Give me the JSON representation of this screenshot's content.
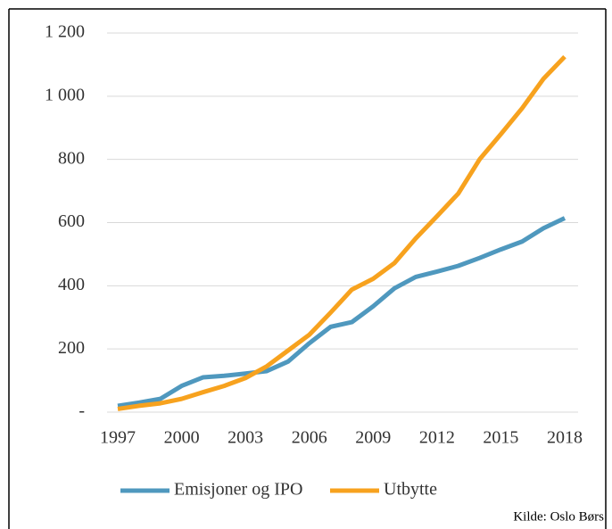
{
  "chart_data": {
    "type": "line",
    "x": [
      1997,
      1998,
      1999,
      2000,
      2001,
      2002,
      2003,
      2004,
      2005,
      2006,
      2007,
      2008,
      2009,
      2010,
      2011,
      2012,
      2013,
      2014,
      2015,
      2016,
      2017,
      2018
    ],
    "series": [
      {
        "name": "Emisjoner og IPO",
        "color": "#4f98be",
        "values": [
          20,
          30,
          42,
          83,
          110,
          115,
          122,
          130,
          160,
          218,
          270,
          285,
          335,
          392,
          428,
          445,
          463,
          488,
          515,
          540,
          582,
          614
        ]
      },
      {
        "name": "Utbytte",
        "color": "#f7a21e",
        "values": [
          10,
          20,
          28,
          42,
          63,
          83,
          108,
          145,
          195,
          245,
          315,
          388,
          422,
          472,
          550,
          620,
          692,
          800,
          880,
          962,
          1055,
          1125
        ]
      }
    ],
    "xlim": [
      1997,
      2018
    ],
    "xticks": [
      1997,
      2000,
      2003,
      2006,
      2009,
      2012,
      2015,
      2018
    ],
    "ylim": [
      0,
      1200
    ],
    "yticks": [
      {
        "value": 0,
        "label": "-"
      },
      200,
      400,
      600,
      800,
      {
        "value": 1000,
        "label": "1 000"
      },
      {
        "value": 1200,
        "label": "1 200"
      }
    ],
    "grid": true,
    "legend": "bottom",
    "source": "Kilde: Oslo Børs"
  }
}
